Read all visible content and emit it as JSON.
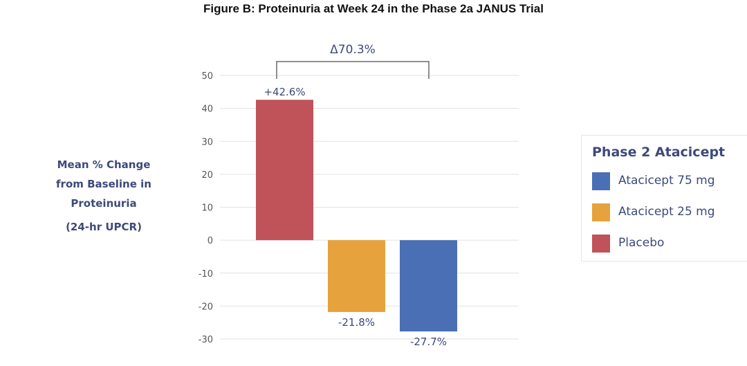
{
  "title": "Figure B: Proteinuria at Week 24 in the Phase 2a JANUS Trial",
  "y_axis_label_lines": [
    "Mean % Change",
    "from Baseline in",
    "Proteinuria"
  ],
  "y_axis_label_sub": "(24-hr UPCR)",
  "legend": {
    "title": "Phase 2 Atacicept",
    "items": [
      {
        "label": "Atacicept 75 mg",
        "color": "#4a6fb5"
      },
      {
        "label": "Atacicept 25 mg",
        "color": "#e6a23c"
      },
      {
        "label": "Placebo",
        "color": "#c0525a"
      }
    ]
  },
  "chart_data": {
    "type": "bar",
    "title": "Figure B: Proteinuria at Week 24 in the Phase 2a JANUS Trial",
    "ylabel": "Mean % Change from Baseline in Proteinuria (24-hr UPCR)",
    "ylim": [
      -30,
      50
    ],
    "yticks": [
      50,
      40,
      30,
      20,
      10,
      0,
      -10,
      -20,
      -30
    ],
    "grid": true,
    "legend_position": "right",
    "bars": [
      {
        "series": "Placebo",
        "value": 42.6,
        "label": "+42.6%",
        "color": "#c0525a"
      },
      {
        "series": "Atacicept 25 mg",
        "value": -21.8,
        "label": "-21.8%",
        "color": "#e6a23c"
      },
      {
        "series": "Atacicept 75 mg",
        "value": -27.7,
        "label": "-27.7%",
        "color": "#4a6fb5"
      }
    ],
    "annotation": {
      "text": "Δ70.3%",
      "from_bar": 0,
      "to_bar": 2
    }
  }
}
